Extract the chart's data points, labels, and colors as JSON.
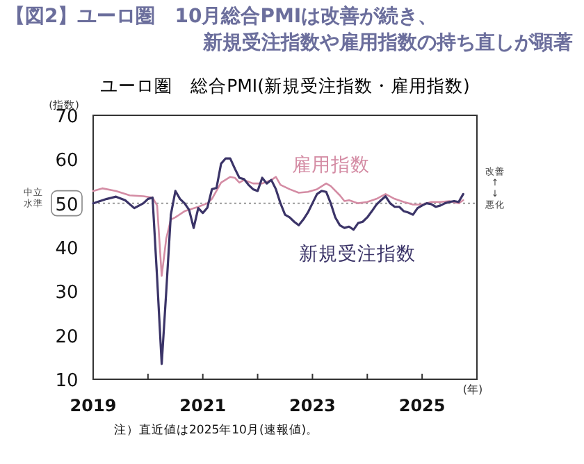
{
  "chart_data": {
    "type": "line",
    "title": "【図2】ユーロ圏　10月総合PMIは改善が続き、新規受注指数や雇用指数の持ち直しが顕著",
    "subtitle": "ユーロ圏　総合PMI(新規受注指数・雇用指数)",
    "ylabel": "(指数)",
    "xlabel": "(年)",
    "xlim": [
      "2019-01",
      "2026-01"
    ],
    "xticks": [
      {
        "value": "2019-01",
        "label": "2019"
      },
      {
        "value": "2020-01",
        "label": null
      },
      {
        "value": "2021-01",
        "label": "2021"
      },
      {
        "value": "2022-01",
        "label": null
      },
      {
        "value": "2023-01",
        "label": "2023"
      },
      {
        "value": "2024-01",
        "label": null
      },
      {
        "value": "2025-01",
        "label": "2025"
      }
    ],
    "ylim": [
      10,
      70
    ],
    "yticks": [
      10,
      20,
      30,
      40,
      50,
      60,
      70
    ],
    "ref_lines": [
      {
        "axis": "y",
        "value": 50,
        "color": "#999999",
        "line_style": "dotted"
      }
    ],
    "grid": false,
    "legend": false,
    "marker": "none",
    "line_style": "solid",
    "annotations": [
      "中立水準",
      "改善\n↑\n↓\n悪化",
      "注）直近値は2025年10月(速報値)。"
    ],
    "series": [
      {
        "name": "雇用指数",
        "color": "#d48ca4",
        "x": [
          "2019-01",
          "2019-03",
          "2019-06",
          "2019-09",
          "2019-12",
          "2020-02",
          "2020-03",
          "2020-04",
          "2020-05",
          "2020-06",
          "2020-07",
          "2020-09",
          "2020-12",
          "2021-02",
          "2021-03",
          "2021-05",
          "2021-07",
          "2021-08",
          "2021-09",
          "2021-10",
          "2021-12",
          "2022-02",
          "2022-04",
          "2022-05",
          "2022-06",
          "2022-08",
          "2022-10",
          "2022-12",
          "2023-02",
          "2023-04",
          "2023-05",
          "2023-07",
          "2023-08",
          "2023-09",
          "2023-11",
          "2024-01",
          "2024-03",
          "2024-05",
          "2024-07",
          "2024-09",
          "2024-11",
          "2025-01",
          "2025-03",
          "2025-05",
          "2025-07",
          "2025-09",
          "2025-10"
        ],
        "values": [
          52.8,
          53.4,
          52.8,
          51.8,
          51.6,
          51.3,
          49.5,
          33.5,
          42,
          46.3,
          46.8,
          48.2,
          49.2,
          50,
          51,
          54.7,
          56,
          55.8,
          54.7,
          55.3,
          54.5,
          54.5,
          55.3,
          56,
          54.2,
          53.2,
          52.4,
          52.6,
          53.2,
          54.5,
          53.9,
          51.8,
          50.5,
          50.7,
          50,
          50.3,
          51,
          52.1,
          51,
          50.3,
          49.7,
          49.7,
          50.3,
          50.3,
          50.5,
          50,
          50.7
        ]
      },
      {
        "name": "新規受注指数",
        "color": "#3b3468",
        "x": [
          "2019-01",
          "2019-04",
          "2019-06",
          "2019-08",
          "2019-10",
          "2019-12",
          "2020-01",
          "2020-02",
          "2020-03",
          "2020-04",
          "2020-05",
          "2020-06",
          "2020-07",
          "2020-08",
          "2020-09",
          "2020-10",
          "2020-11",
          "2020-12",
          "2021-01",
          "2021-02",
          "2021-03",
          "2021-04",
          "2021-05",
          "2021-06",
          "2021-07",
          "2021-08",
          "2021-09",
          "2021-10",
          "2021-11",
          "2021-12",
          "2022-01",
          "2022-02",
          "2022-03",
          "2022-04",
          "2022-05",
          "2022-06",
          "2022-07",
          "2022-08",
          "2022-09",
          "2022-10",
          "2022-11",
          "2022-12",
          "2023-01",
          "2023-02",
          "2023-03",
          "2023-04",
          "2023-05",
          "2023-06",
          "2023-07",
          "2023-08",
          "2023-09",
          "2023-10",
          "2023-11",
          "2023-12",
          "2024-01",
          "2024-02",
          "2024-03",
          "2024-04",
          "2024-05",
          "2024-06",
          "2024-07",
          "2024-08",
          "2024-09",
          "2024-10",
          "2024-11",
          "2024-12",
          "2025-01",
          "2025-02",
          "2025-03",
          "2025-04",
          "2025-05",
          "2025-06",
          "2025-07",
          "2025-08",
          "2025-09",
          "2025-10"
        ],
        "values": [
          50,
          51,
          51.5,
          50.7,
          48.9,
          50,
          51,
          51.3,
          33,
          13.5,
          30,
          47.4,
          52.8,
          51,
          50,
          48.5,
          44.4,
          48.9,
          47.8,
          49,
          53.2,
          53.5,
          59,
          60.2,
          60.2,
          57.9,
          55.8,
          55.5,
          54.2,
          53.2,
          52.8,
          55.8,
          54.5,
          55.3,
          53.2,
          50,
          47.4,
          46.8,
          45.8,
          45,
          46.3,
          47.9,
          50,
          52.1,
          52.8,
          52.6,
          50,
          46.8,
          45,
          44.4,
          44.7,
          44,
          45.5,
          45.8,
          46.8,
          48.2,
          49.7,
          50.7,
          51.6,
          50,
          49.2,
          49.2,
          48.2,
          47.9,
          47.4,
          48.9,
          49.5,
          50,
          49.8,
          49.2,
          49.5,
          50,
          50.3,
          50.5,
          50.3,
          52.1
        ]
      }
    ]
  }
}
